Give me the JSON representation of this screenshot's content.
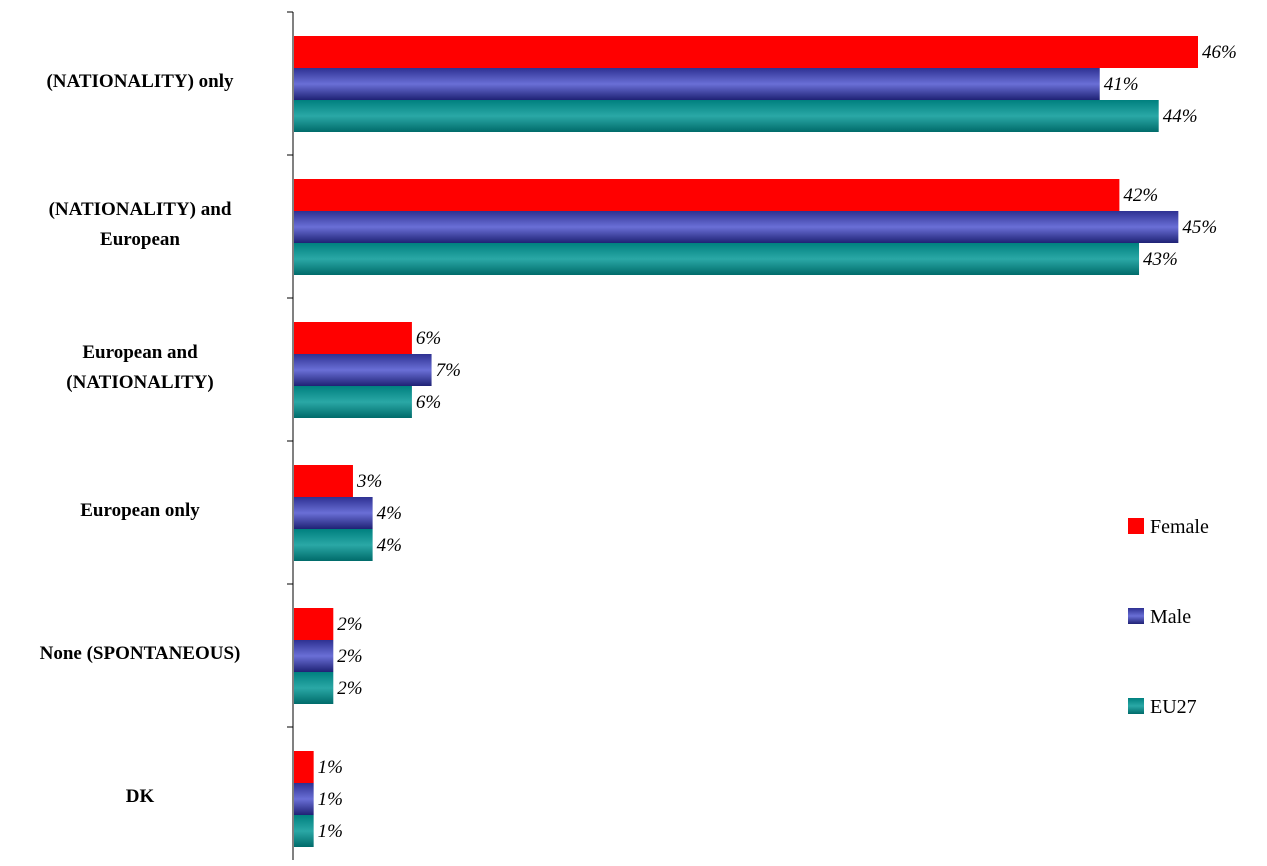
{
  "chart_data": {
    "type": "bar",
    "orientation": "horizontal",
    "categories": [
      [
        "(NATIONALITY) only"
      ],
      [
        "(NATIONALITY) and",
        "European"
      ],
      [
        "European and",
        "(NATIONALITY)"
      ],
      [
        "European only"
      ],
      [
        "None (SPONTANEOUS)"
      ],
      [
        "DK"
      ]
    ],
    "series": [
      {
        "name": "Female",
        "color": "#ff0000",
        "values": [
          46,
          42,
          6,
          3,
          2,
          1
        ],
        "labels": [
          "46%",
          "42%",
          "6%",
          "3%",
          "2%",
          "1%"
        ]
      },
      {
        "name": "Male",
        "color": "#2e3192",
        "values": [
          41,
          45,
          7,
          4,
          2,
          1
        ],
        "labels": [
          "41%",
          "45%",
          "7%",
          "4%",
          "2%",
          "1%"
        ]
      },
      {
        "name": "EU27",
        "color": "#00807f",
        "values": [
          44,
          43,
          6,
          4,
          2,
          1
        ],
        "labels": [
          "44%",
          "43%",
          "6%",
          "4%",
          "2%",
          "1%"
        ]
      }
    ],
    "xlim": [
      0,
      50
    ],
    "grid": false,
    "legend_position": "right"
  }
}
